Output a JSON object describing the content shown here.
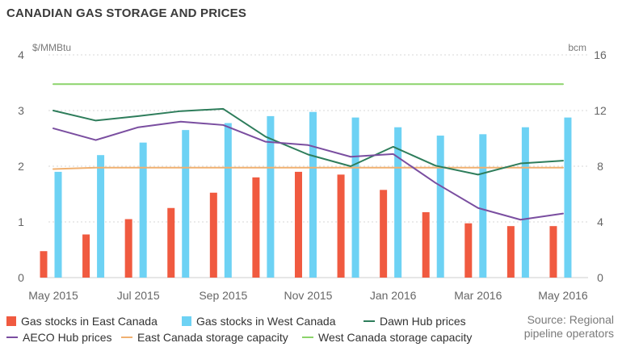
{
  "title": "CANADIAN GAS STORAGE AND PRICES",
  "source_line1": "Source: Regional",
  "source_line2": "pipeline operators",
  "colors": {
    "east_stock": "#f05a40",
    "west_stock": "#6dd2f4",
    "dawn": "#2e7d5b",
    "aeco": "#7a4ea0",
    "east_cap": "#f0b070",
    "west_cap": "#8bd36a",
    "grid": "#d7d7d7",
    "axis_text": "#666666"
  },
  "chart_data": {
    "type": "bar",
    "left_axis": {
      "label": "$/MMBtu",
      "ylim": [
        0,
        4
      ],
      "ticks": [
        0,
        1,
        2,
        3,
        4
      ]
    },
    "right_axis": {
      "label": "bcm",
      "ylim": [
        0,
        16
      ],
      "ticks": [
        0,
        4,
        8,
        12,
        16
      ]
    },
    "x_ticks": [
      "May 2015",
      "Jul 2015",
      "Sep 2015",
      "Nov 2015",
      "Jan 2016",
      "Mar 2016",
      "May 2016"
    ],
    "months": [
      "2015-05",
      "2015-06",
      "2015-07",
      "2015-08",
      "2015-09",
      "2015-10",
      "2015-11",
      "2015-12",
      "2016-01",
      "2016-02",
      "2016-03",
      "2016-04",
      "2016-05"
    ],
    "grid": true,
    "legend_position": "bottom",
    "series": [
      {
        "name": "Gas stocks in East Canada",
        "kind": "bar",
        "axis": "right",
        "values": [
          1.9,
          3.1,
          4.2,
          5.0,
          6.1,
          7.2,
          7.6,
          7.4,
          6.3,
          4.7,
          3.9,
          3.7,
          3.7
        ]
      },
      {
        "name": "Gas stocks in West Canada",
        "kind": "bar",
        "axis": "right",
        "values": [
          7.6,
          8.8,
          9.7,
          10.6,
          11.1,
          11.6,
          11.9,
          11.5,
          10.8,
          10.2,
          10.3,
          10.8,
          11.5
        ]
      },
      {
        "name": "Dawn Hub prices",
        "kind": "line",
        "axis": "left",
        "values": [
          3.0,
          2.82,
          2.9,
          2.99,
          3.03,
          2.53,
          2.21,
          2.0,
          2.35,
          2.01,
          1.85,
          2.05,
          2.1
        ]
      },
      {
        "name": "AECO Hub prices",
        "kind": "line",
        "axis": "left",
        "values": [
          2.68,
          2.47,
          2.7,
          2.8,
          2.74,
          2.44,
          2.38,
          2.17,
          2.22,
          1.7,
          1.25,
          1.04,
          1.15
        ]
      },
      {
        "name": "East Canada storage capacity",
        "kind": "line",
        "axis": "right",
        "values": [
          7.8,
          7.9,
          7.9,
          7.9,
          7.9,
          7.9,
          7.9,
          7.9,
          7.9,
          7.9,
          7.9,
          7.9,
          7.9
        ]
      },
      {
        "name": "West Canada storage capacity",
        "kind": "line",
        "axis": "right",
        "values": [
          13.9,
          13.9,
          13.9,
          13.9,
          13.9,
          13.9,
          13.9,
          13.9,
          13.9,
          13.9,
          13.9,
          13.9,
          13.9
        ]
      }
    ]
  }
}
